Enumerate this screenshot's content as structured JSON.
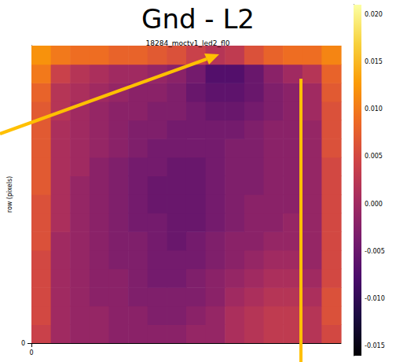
{
  "chart_data": {
    "type": "heatmap",
    "title": "Gnd - L2",
    "subtitle": "18284_moctv1_led2_fl0",
    "y_label": "row (pixels)",
    "xlim": [
      0,
      2048
    ],
    "ylim": [
      0,
      2048
    ],
    "xticks": [
      0
    ],
    "yticks": [
      0
    ],
    "x_edges": [
      0,
      128,
      256,
      384,
      512,
      640,
      768,
      896,
      1024,
      1152,
      1280,
      1408,
      1536,
      1664,
      1792,
      1920,
      2048
    ],
    "y_edges": [
      0,
      128,
      256,
      384,
      512,
      640,
      768,
      896,
      1024,
      1152,
      1280,
      1408,
      1536,
      1664,
      1792,
      1920,
      2048
    ],
    "cells": [
      [
        0.004,
        0.0,
        -0.001,
        -0.001,
        -0.002,
        -0.002,
        -0.002,
        -0.002,
        -0.001,
        -0.001,
        0.001,
        0.002,
        0.003,
        0.003,
        0.002,
        0.005
      ],
      [
        0.005,
        0.0,
        -0.001,
        -0.001,
        -0.002,
        -0.002,
        -0.003,
        -0.003,
        -0.002,
        -0.001,
        0.001,
        0.002,
        0.003,
        0.003,
        0.002,
        0.006
      ],
      [
        0.005,
        0.0,
        -0.001,
        -0.002,
        -0.002,
        -0.003,
        -0.003,
        -0.003,
        -0.003,
        -0.002,
        0.0,
        0.001,
        0.002,
        0.002,
        0.001,
        0.006
      ],
      [
        0.005,
        0.0,
        -0.001,
        -0.002,
        -0.002,
        -0.003,
        -0.004,
        -0.004,
        -0.003,
        -0.002,
        -0.001,
        0.0,
        0.001,
        0.001,
        0.0,
        0.005
      ],
      [
        0.005,
        0.0,
        -0.001,
        -0.002,
        -0.003,
        -0.003,
        -0.004,
        -0.004,
        -0.004,
        -0.003,
        -0.002,
        -0.001,
        0.0,
        0.0,
        -0.001,
        0.005
      ],
      [
        0.006,
        0.0,
        -0.001,
        -0.002,
        -0.003,
        -0.003,
        -0.004,
        -0.005,
        -0.004,
        -0.003,
        -0.002,
        -0.002,
        -0.001,
        -0.001,
        -0.001,
        0.005
      ],
      [
        0.006,
        0.001,
        -0.001,
        -0.002,
        -0.003,
        -0.004,
        -0.004,
        -0.005,
        -0.005,
        -0.004,
        -0.003,
        -0.002,
        -0.002,
        -0.001,
        -0.001,
        0.005
      ],
      [
        0.006,
        0.001,
        -0.001,
        -0.002,
        -0.003,
        -0.004,
        -0.005,
        -0.005,
        -0.005,
        -0.004,
        -0.003,
        -0.002,
        -0.002,
        -0.002,
        -0.001,
        0.005
      ],
      [
        0.007,
        0.001,
        -0.001,
        -0.002,
        -0.003,
        -0.004,
        -0.005,
        -0.005,
        -0.005,
        -0.004,
        -0.003,
        -0.003,
        -0.002,
        -0.002,
        -0.001,
        0.005
      ],
      [
        0.007,
        0.001,
        0.0,
        -0.002,
        -0.003,
        -0.004,
        -0.004,
        -0.005,
        -0.005,
        -0.004,
        -0.003,
        -0.003,
        -0.002,
        -0.002,
        -0.001,
        0.005
      ],
      [
        0.007,
        0.001,
        0.0,
        -0.001,
        -0.002,
        -0.003,
        -0.004,
        -0.004,
        -0.004,
        -0.004,
        -0.003,
        -0.003,
        -0.002,
        -0.002,
        -0.001,
        0.006
      ],
      [
        0.007,
        0.001,
        0.0,
        -0.001,
        -0.002,
        -0.003,
        -0.003,
        -0.004,
        -0.004,
        -0.004,
        -0.004,
        -0.003,
        -0.002,
        -0.002,
        -0.001,
        0.006
      ],
      [
        0.007,
        0.002,
        0.0,
        -0.001,
        -0.002,
        -0.002,
        -0.003,
        -0.003,
        -0.004,
        -0.005,
        -0.005,
        -0.004,
        -0.003,
        -0.002,
        0.0,
        0.006
      ],
      [
        0.008,
        0.002,
        0.001,
        0.0,
        -0.001,
        -0.002,
        -0.002,
        -0.003,
        -0.005,
        -0.006,
        -0.006,
        -0.005,
        -0.003,
        -0.002,
        0.0,
        0.007
      ],
      [
        0.01,
        0.004,
        0.002,
        0.001,
        0.0,
        0.0,
        -0.001,
        -0.002,
        -0.004,
        -0.007,
        -0.007,
        -0.005,
        -0.002,
        0.0,
        0.002,
        0.008
      ],
      [
        0.012,
        0.01,
        0.009,
        0.009,
        0.008,
        0.008,
        0.007,
        0.006,
        0.004,
        0.002,
        0.003,
        0.006,
        0.008,
        0.009,
        0.009,
        0.011
      ]
    ],
    "colorbar": {
      "range": [
        -0.016,
        0.021
      ],
      "ticks": [
        -0.015,
        {
          "value": -0.01,
          "label": "-0.010"
        },
        -0.005,
        {
          "value": 0,
          "label": "0.000"
        },
        0.005,
        {
          "value": 0.01,
          "label": "0.010"
        },
        0.015,
        {
          "value": 0.02,
          "label": "0.020"
        }
      ]
    }
  }
}
